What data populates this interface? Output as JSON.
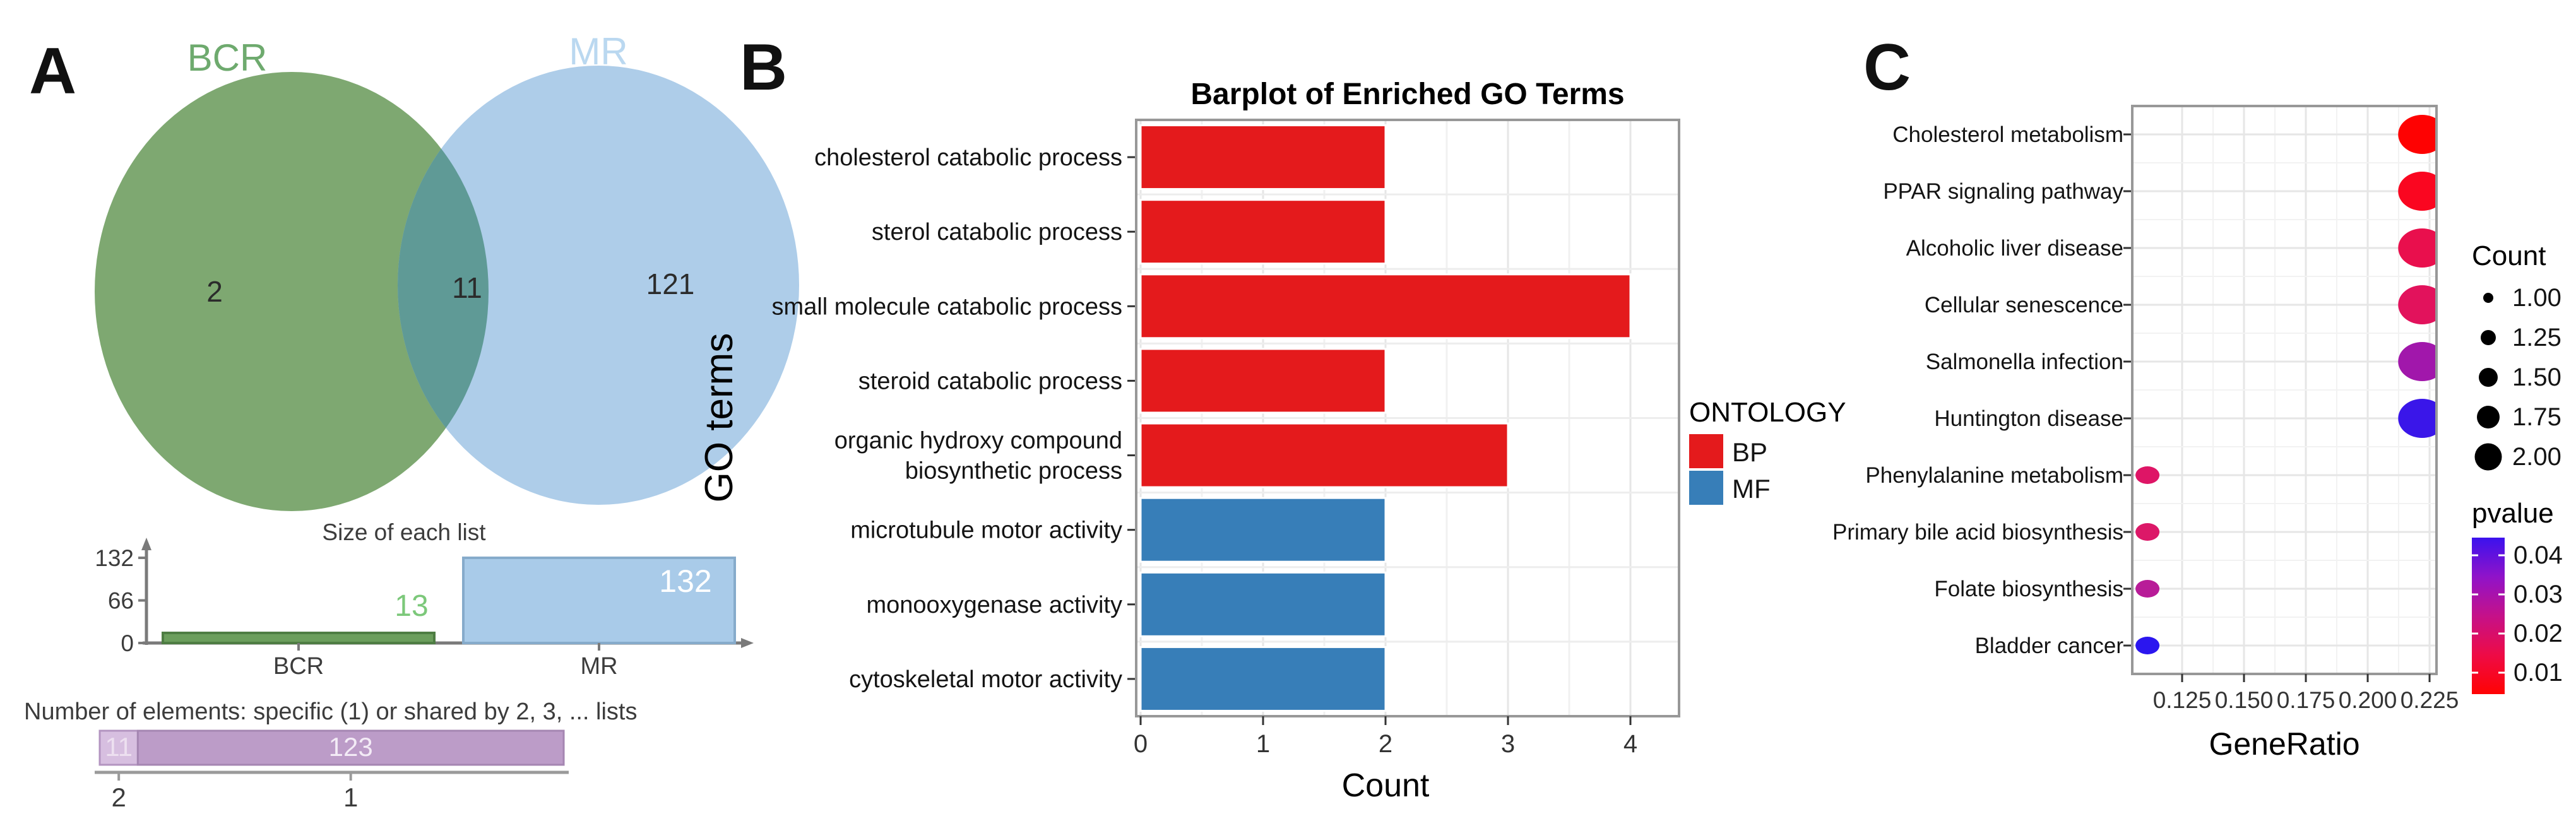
{
  "panels": {
    "a": {
      "label": "A"
    },
    "b": {
      "label": "B"
    },
    "c": {
      "label": "C"
    }
  },
  "chart_data": [
    {
      "id": "venn",
      "type": "venn",
      "sets": [
        {
          "name": "BCR",
          "color": "#7EA871",
          "label_color": "#6EAA6E",
          "unique_count": "2"
        },
        {
          "name": "MR",
          "color": "#AECDE9",
          "label_color": "#BAD8F0",
          "unique_count": "121"
        }
      ],
      "intersection_count": "11",
      "intersection_color": "#5F9A96"
    },
    {
      "id": "list_sizes",
      "type": "bar",
      "title": "Size of each list",
      "categories": [
        "BCR",
        "MR"
      ],
      "values": [
        13,
        132
      ],
      "ylim": [
        0,
        132
      ],
      "y_ticks": [
        "0",
        "66",
        "132"
      ],
      "bar_colors": [
        "#6B9E5C",
        "#A9CBE9"
      ],
      "bar_strokes": [
        "#4E7D43",
        "#86ABCB"
      ],
      "value_labels": [
        "13",
        "132"
      ],
      "value_label_colors": [
        "#7CC87A",
        "#FFFFFF"
      ]
    },
    {
      "id": "element_counts",
      "type": "stacked-bar",
      "title": "Number of elements: specific (1) or shared by 2, 3, ... lists",
      "segments": [
        {
          "label": "11",
          "value": 11,
          "axis_label": "2",
          "color": "#D7BFE0",
          "stroke": "#B394C0",
          "text_color": "#EDE0F0"
        },
        {
          "label": "123",
          "value": 123,
          "axis_label": "1",
          "color": "#BC9CC8",
          "stroke": "#A586B2",
          "text_color": "#F3EBF6"
        }
      ]
    },
    {
      "id": "go_barplot",
      "type": "bar",
      "title": "Barplot of Enriched GO Terms",
      "xlabel": "Count",
      "ylabel": "GO terms",
      "xlim": [
        0,
        4
      ],
      "x_ticks": [
        "0",
        "1",
        "2",
        "3",
        "4"
      ],
      "categories": [
        {
          "display_lines": [
            "cholesterol catabolic process"
          ],
          "count": 2,
          "ontology": "BP"
        },
        {
          "display_lines": [
            "sterol catabolic process"
          ],
          "count": 2,
          "ontology": "BP"
        },
        {
          "display_lines": [
            "small molecule catabolic process"
          ],
          "count": 4,
          "ontology": "BP"
        },
        {
          "display_lines": [
            "steroid catabolic process"
          ],
          "count": 2,
          "ontology": "BP"
        },
        {
          "display_lines": [
            "organic hydroxy compound",
            "biosynthetic process"
          ],
          "count": 3,
          "ontology": "BP"
        },
        {
          "display_lines": [
            "microtubule motor activity"
          ],
          "count": 2,
          "ontology": "MF"
        },
        {
          "display_lines": [
            "monooxygenase activity"
          ],
          "count": 2,
          "ontology": "MF"
        },
        {
          "display_lines": [
            "cytoskeletal motor activity"
          ],
          "count": 2,
          "ontology": "MF"
        }
      ],
      "legend": {
        "title": "ONTOLOGY",
        "items": [
          {
            "label": "BP",
            "color": "#E41A1C"
          },
          {
            "label": "MF",
            "color": "#377EB8"
          }
        ]
      }
    },
    {
      "id": "kegg_dotplot",
      "type": "scatter",
      "xlabel": "GeneRatio",
      "xlim": [
        0.105,
        0.2275
      ],
      "x_ticks": [
        "0.125",
        "0.150",
        "0.175",
        "0.200",
        "0.225"
      ],
      "points": [
        {
          "pathway": "Cholesterol metabolism",
          "gene_ratio": 0.222,
          "count": 2,
          "pvalue_color": "#FE0202"
        },
        {
          "pathway": "PPAR signaling pathway",
          "gene_ratio": 0.222,
          "count": 2,
          "pvalue_color": "#FA0620"
        },
        {
          "pathway": "Alcoholic liver disease",
          "gene_ratio": 0.222,
          "count": 2,
          "pvalue_color": "#E90F4D"
        },
        {
          "pathway": "Cellular senescence",
          "gene_ratio": 0.222,
          "count": 2,
          "pvalue_color": "#E2125C"
        },
        {
          "pathway": "Salmonella infection",
          "gene_ratio": 0.222,
          "count": 2,
          "pvalue_color": "#A117AB"
        },
        {
          "pathway": "Huntington disease",
          "gene_ratio": 0.222,
          "count": 2,
          "pvalue_color": "#3A16E9"
        },
        {
          "pathway": "Phenylalanine metabolism",
          "gene_ratio": 0.111,
          "count": 1,
          "pvalue_color": "#DE1566"
        },
        {
          "pathway": "Primary bile acid biosynthesis",
          "gene_ratio": 0.111,
          "count": 1,
          "pvalue_color": "#DC1868"
        },
        {
          "pathway": "Folate biosynthesis",
          "gene_ratio": 0.111,
          "count": 1,
          "pvalue_color": "#B81C98"
        },
        {
          "pathway": "Bladder cancer",
          "gene_ratio": 0.111,
          "count": 1,
          "pvalue_color": "#2B16EF"
        }
      ],
      "count_legend": {
        "title": "Count",
        "tick_labels": [
          "1.00",
          "1.25",
          "1.50",
          "1.75",
          "2.00"
        ]
      },
      "pvalue_legend": {
        "title": "pvalue",
        "tick_labels": [
          "0.04",
          "0.03",
          "0.02",
          "0.01"
        ],
        "gradient_top_to_bottom": [
          "#3B12EE",
          "#9013C9",
          "#C51189",
          "#EE0B46",
          "#FF0303"
        ]
      }
    }
  ]
}
